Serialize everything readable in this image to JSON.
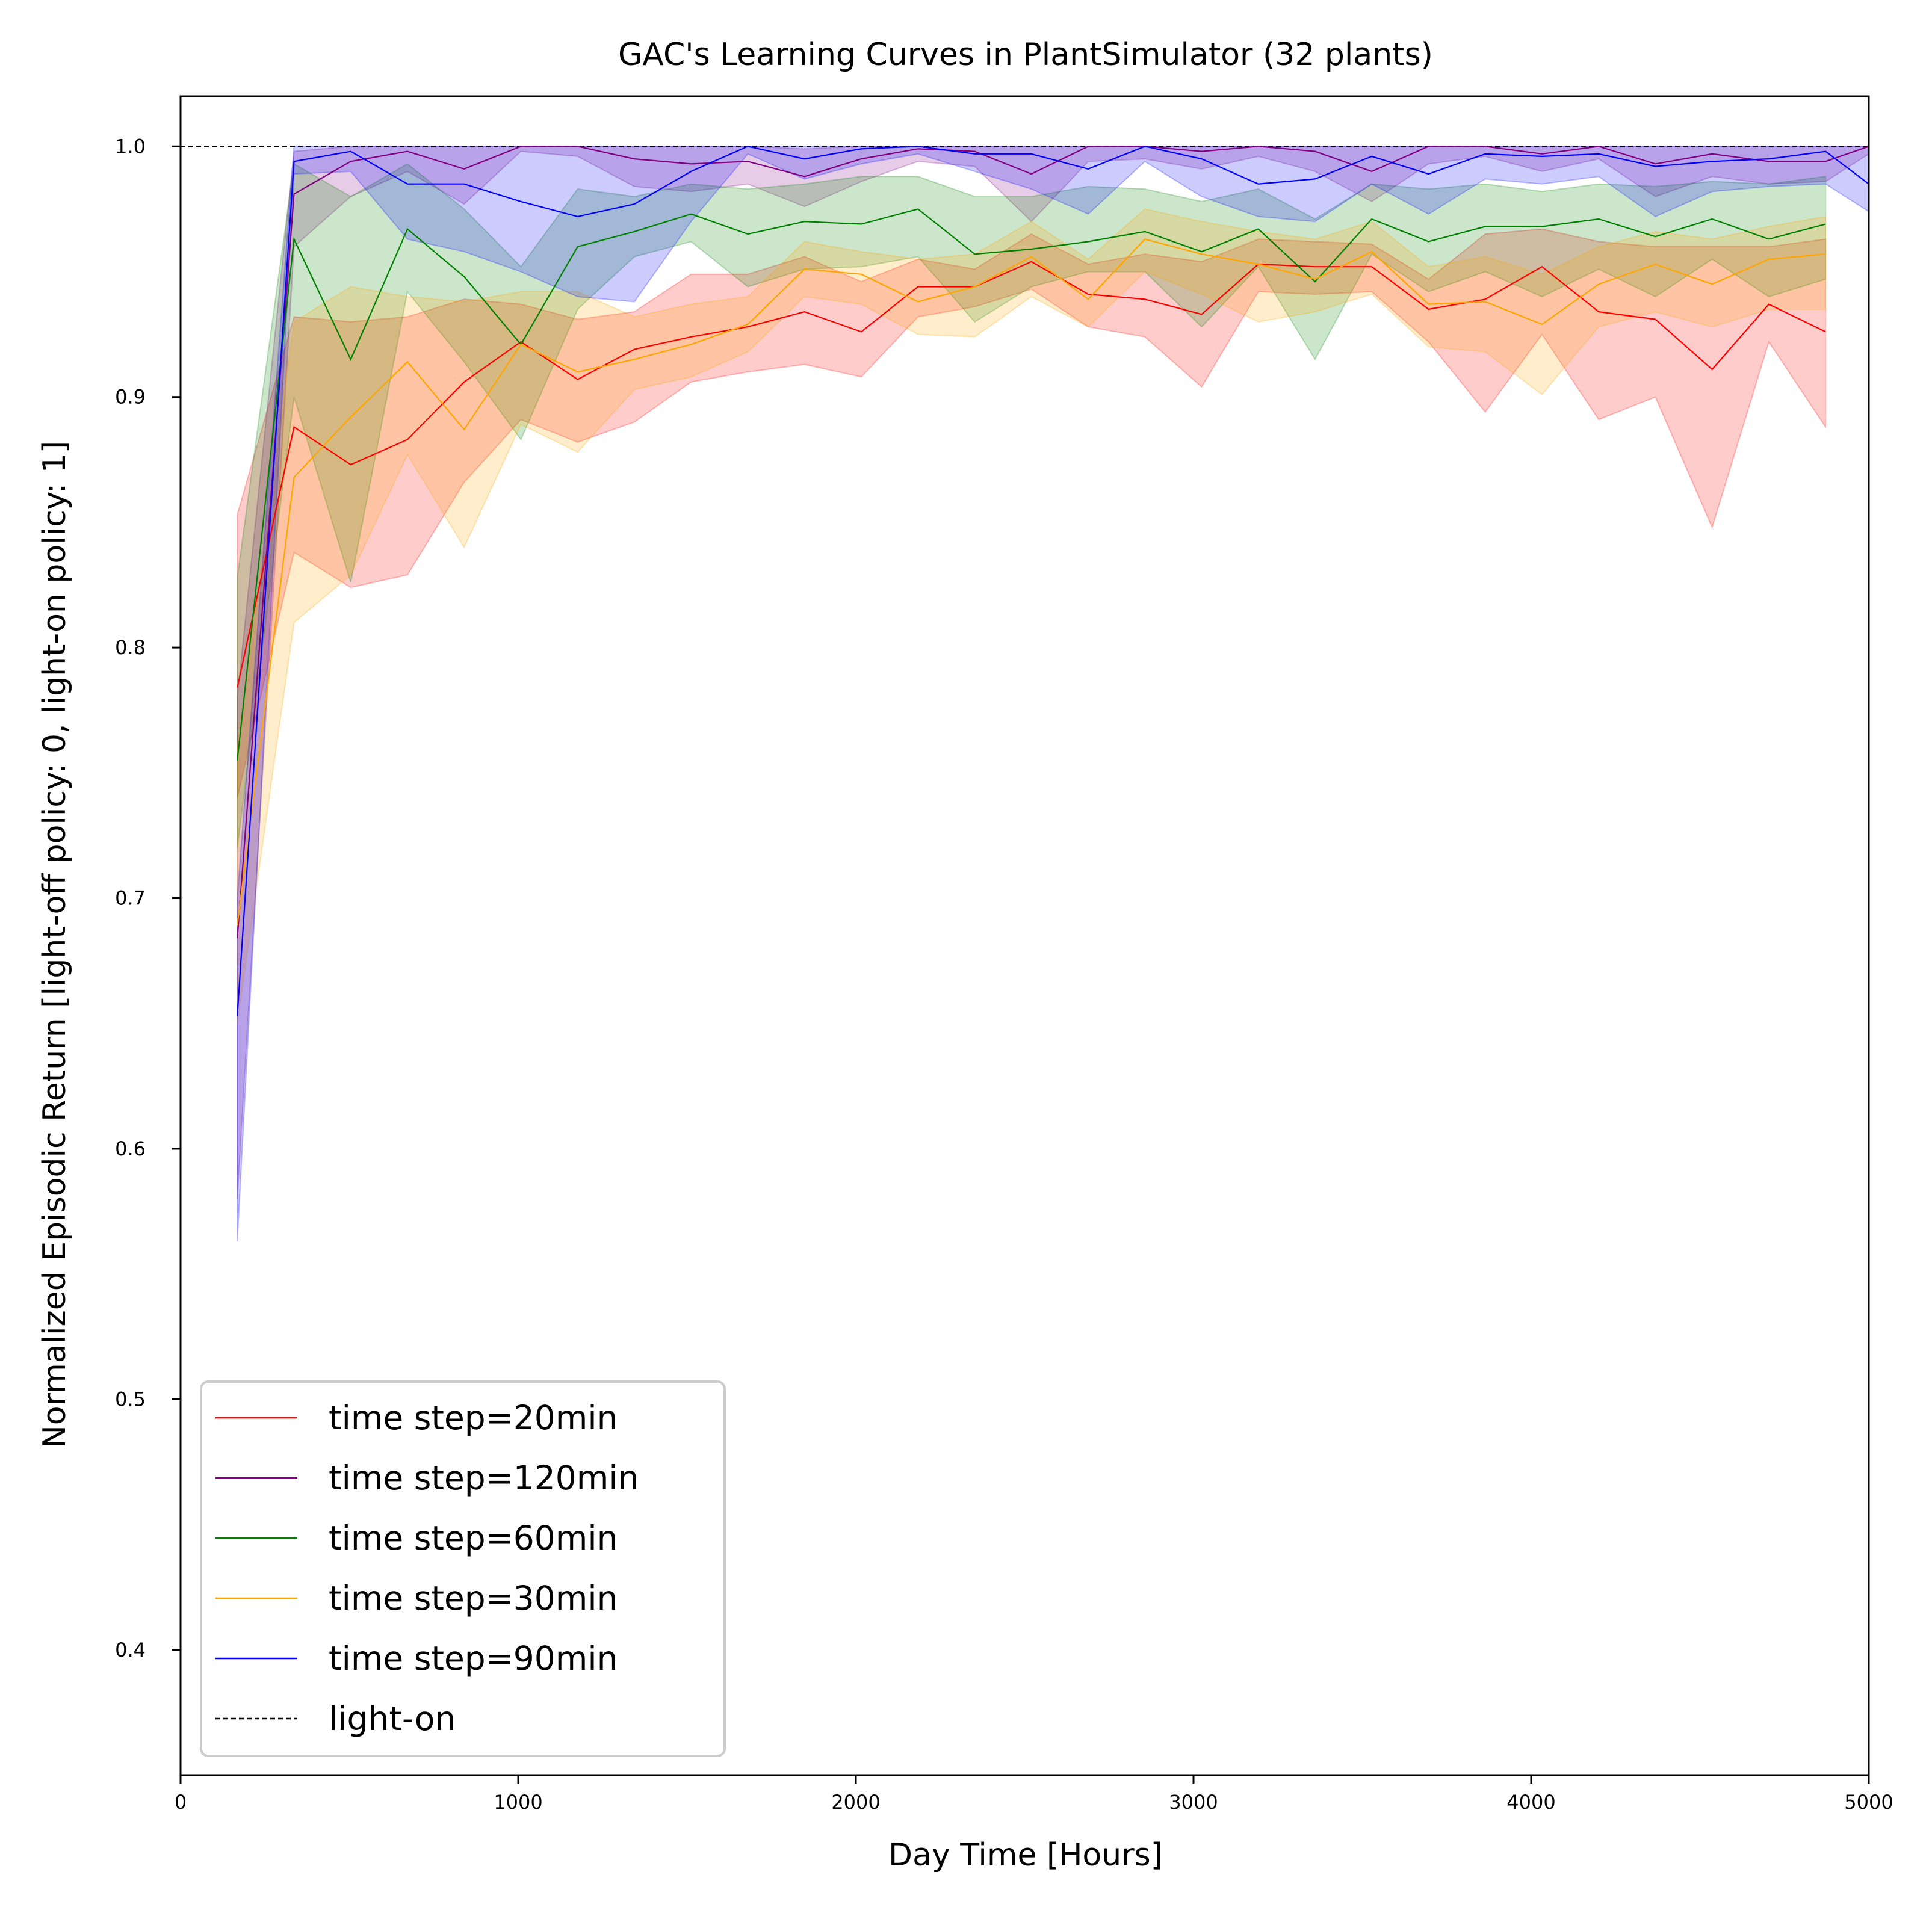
{
  "chart_data": {
    "type": "line",
    "title": "GAC's Learning Curves in PlantSimulator (32 plants)",
    "xlabel": "Day Time [Hours]",
    "ylabel": "Normalized Episodic Return [light-off policy: 0, light-on policy: 1]",
    "xlim": [
      0,
      5000
    ],
    "ylim": [
      0.35,
      1.02
    ],
    "xticks": [
      0,
      1000,
      2000,
      3000,
      4000,
      5000
    ],
    "xtick_labels": [
      "0",
      "1000",
      "2000",
      "3000",
      "4000",
      "5000"
    ],
    "yticks": [
      0.4,
      0.5,
      0.6,
      0.7,
      0.8,
      0.9,
      1.0
    ],
    "ytick_labels": [
      "0.4",
      "0.5",
      "0.6",
      "0.7",
      "0.8",
      "0.9",
      "1.0"
    ],
    "grid": false,
    "legend_position": "lower-left",
    "series": [
      {
        "name": "time step=20min",
        "color": "#ff0000",
        "x": [
          168,
          336,
          504,
          672,
          840,
          1008,
          1176,
          1344,
          1512,
          1680,
          1848,
          2016,
          2184,
          2352,
          2520,
          2688,
          2856,
          3024,
          3192,
          3360,
          3528,
          3696,
          3864,
          4032,
          4200,
          4368,
          4536,
          4704,
          4872
        ],
        "y": [
          0.784,
          0.888,
          0.873,
          0.883,
          0.906,
          0.922,
          0.907,
          0.919,
          0.924,
          0.928,
          0.934,
          0.926,
          0.944,
          0.944,
          0.954,
          0.941,
          0.939,
          0.933,
          0.953,
          0.952,
          0.952,
          0.935,
          0.939,
          0.952,
          0.934,
          0.931,
          0.911,
          0.937,
          0.926
        ],
        "lower": [
          0.74,
          0.838,
          0.824,
          0.829,
          0.866,
          0.891,
          0.882,
          0.89,
          0.906,
          0.91,
          0.913,
          0.908,
          0.932,
          0.936,
          0.943,
          0.928,
          0.924,
          0.904,
          0.942,
          0.941,
          0.942,
          0.922,
          0.894,
          0.925,
          0.891,
          0.9,
          0.848,
          0.922,
          0.888
        ],
        "upper": [
          0.853,
          0.932,
          0.93,
          0.932,
          0.939,
          0.937,
          0.931,
          0.934,
          0.949,
          0.949,
          0.956,
          0.946,
          0.955,
          0.951,
          0.965,
          0.953,
          0.957,
          0.954,
          0.963,
          0.962,
          0.961,
          0.947,
          0.965,
          0.967,
          0.962,
          0.96,
          0.96,
          0.96,
          0.963
        ]
      },
      {
        "name": "time step=120min",
        "color": "#800080",
        "x": [
          168,
          336,
          504,
          672,
          840,
          1008,
          1176,
          1344,
          1512,
          1680,
          1848,
          2016,
          2184,
          2352,
          2520,
          2688,
          2856,
          3024,
          3192,
          3360,
          3528,
          3696,
          3864,
          4032,
          4200,
          4368,
          4536,
          4704,
          4872,
          5000
        ],
        "y": [
          0.684,
          0.981,
          0.994,
          0.998,
          0.991,
          1.0,
          1.0,
          0.995,
          0.993,
          0.994,
          0.988,
          0.995,
          0.999,
          0.998,
          0.989,
          1.0,
          1.0,
          0.998,
          1.0,
          0.998,
          0.99,
          1.0,
          1.0,
          0.997,
          1.0,
          0.993,
          0.997,
          0.994,
          0.994,
          1.0
        ],
        "lower": [
          0.58,
          0.96,
          0.98,
          0.99,
          0.977,
          0.998,
          0.996,
          0.984,
          0.982,
          0.985,
          0.976,
          0.986,
          0.994,
          0.992,
          0.97,
          0.994,
          0.995,
          0.991,
          0.996,
          0.99,
          0.978,
          0.993,
          0.996,
          0.99,
          0.995,
          0.98,
          0.988,
          0.985,
          0.986,
          0.997
        ],
        "upper": [
          0.78,
          0.998,
          1.0,
          1.0,
          1.0,
          1.0,
          1.0,
          1.0,
          1.0,
          1.0,
          0.999,
          1.0,
          1.0,
          1.0,
          1.0,
          1.0,
          1.0,
          1.0,
          1.0,
          1.0,
          1.0,
          1.0,
          1.0,
          1.0,
          1.0,
          1.0,
          1.0,
          1.0,
          1.0,
          1.0
        ]
      },
      {
        "name": "time step=60min",
        "color": "#008000",
        "x": [
          168,
          336,
          504,
          672,
          840,
          1008,
          1176,
          1344,
          1512,
          1680,
          1848,
          2016,
          2184,
          2352,
          2520,
          2688,
          2856,
          3024,
          3192,
          3360,
          3528,
          3696,
          3864,
          4032,
          4200,
          4368,
          4536,
          4704,
          4872
        ],
        "y": [
          0.755,
          0.963,
          0.915,
          0.967,
          0.948,
          0.921,
          0.96,
          0.966,
          0.973,
          0.965,
          0.97,
          0.969,
          0.975,
          0.957,
          0.959,
          0.962,
          0.966,
          0.958,
          0.967,
          0.946,
          0.971,
          0.962,
          0.968,
          0.968,
          0.971,
          0.964,
          0.971,
          0.963,
          0.969
        ],
        "lower": [
          0.72,
          0.9,
          0.826,
          0.942,
          0.914,
          0.883,
          0.935,
          0.956,
          0.962,
          0.944,
          0.951,
          0.952,
          0.956,
          0.93,
          0.944,
          0.95,
          0.95,
          0.928,
          0.952,
          0.915,
          0.957,
          0.942,
          0.95,
          0.94,
          0.951,
          0.94,
          0.955,
          0.94,
          0.947
        ],
        "upper": [
          0.828,
          0.993,
          0.98,
          0.993,
          0.975,
          0.952,
          0.983,
          0.98,
          0.985,
          0.983,
          0.985,
          0.988,
          0.988,
          0.98,
          0.98,
          0.984,
          0.983,
          0.978,
          0.983,
          0.971,
          0.985,
          0.983,
          0.985,
          0.982,
          0.985,
          0.984,
          0.986,
          0.985,
          0.988
        ]
      },
      {
        "name": "time step=30min",
        "color": "#ffa500",
        "x": [
          168,
          336,
          504,
          672,
          840,
          1008,
          1176,
          1344,
          1512,
          1680,
          1848,
          2016,
          2184,
          2352,
          2520,
          2688,
          2856,
          3024,
          3192,
          3360,
          3528,
          3696,
          3864,
          4032,
          4200,
          4368,
          4536,
          4704,
          4872
        ],
        "y": [
          0.689,
          0.868,
          0.892,
          0.914,
          0.887,
          0.921,
          0.91,
          0.915,
          0.921,
          0.929,
          0.951,
          0.949,
          0.938,
          0.944,
          0.956,
          0.939,
          0.963,
          0.957,
          0.953,
          0.947,
          0.958,
          0.937,
          0.938,
          0.929,
          0.945,
          0.953,
          0.945,
          0.955,
          0.957
        ],
        "lower": [
          0.65,
          0.81,
          0.829,
          0.877,
          0.84,
          0.889,
          0.878,
          0.903,
          0.908,
          0.918,
          0.94,
          0.937,
          0.925,
          0.924,
          0.94,
          0.928,
          0.95,
          0.941,
          0.93,
          0.934,
          0.941,
          0.92,
          0.918,
          0.901,
          0.928,
          0.934,
          0.928,
          0.935,
          0.935
        ],
        "upper": [
          0.76,
          0.93,
          0.944,
          0.94,
          0.938,
          0.942,
          0.942,
          0.932,
          0.937,
          0.94,
          0.962,
          0.958,
          0.955,
          0.957,
          0.97,
          0.955,
          0.975,
          0.97,
          0.966,
          0.963,
          0.97,
          0.952,
          0.956,
          0.949,
          0.96,
          0.966,
          0.963,
          0.968,
          0.972
        ]
      },
      {
        "name": "time step=90min",
        "color": "#0000ff",
        "x": [
          168,
          336,
          504,
          672,
          840,
          1008,
          1176,
          1344,
          1512,
          1680,
          1848,
          2016,
          2184,
          2352,
          2520,
          2688,
          2856,
          3024,
          3192,
          3360,
          3528,
          3696,
          3864,
          4032,
          4200,
          4368,
          4536,
          4704,
          4872,
          5000
        ],
        "y": [
          0.653,
          0.994,
          0.998,
          0.985,
          0.985,
          0.978,
          0.972,
          0.977,
          0.99,
          1.0,
          0.995,
          0.999,
          1.0,
          0.997,
          0.997,
          0.991,
          1.0,
          0.995,
          0.985,
          0.987,
          0.996,
          0.989,
          0.997,
          0.996,
          0.997,
          0.992,
          0.994,
          0.995,
          0.998,
          0.985
        ],
        "lower": [
          0.563,
          0.989,
          0.99,
          0.963,
          0.958,
          0.95,
          0.94,
          0.938,
          0.97,
          0.997,
          0.987,
          0.993,
          0.997,
          0.99,
          0.983,
          0.973,
          0.994,
          0.98,
          0.972,
          0.97,
          0.985,
          0.973,
          0.987,
          0.985,
          0.988,
          0.972,
          0.982,
          0.984,
          0.985,
          0.974
        ],
        "upper": [
          0.7,
          1.0,
          1.0,
          1.0,
          1.0,
          1.0,
          1.0,
          1.0,
          1.0,
          1.0,
          1.0,
          1.0,
          1.0,
          1.0,
          1.0,
          1.0,
          1.0,
          1.0,
          1.0,
          1.0,
          1.0,
          1.0,
          1.0,
          1.0,
          1.0,
          1.0,
          1.0,
          1.0,
          1.0,
          1.0
        ]
      }
    ],
    "reference_line": {
      "name": "light-on",
      "y": 1.0,
      "color": "#000000",
      "style": "dashed"
    },
    "legend_order": [
      "time step=20min",
      "time step=120min",
      "time step=60min",
      "time step=30min",
      "time step=90min",
      "light-on"
    ]
  }
}
